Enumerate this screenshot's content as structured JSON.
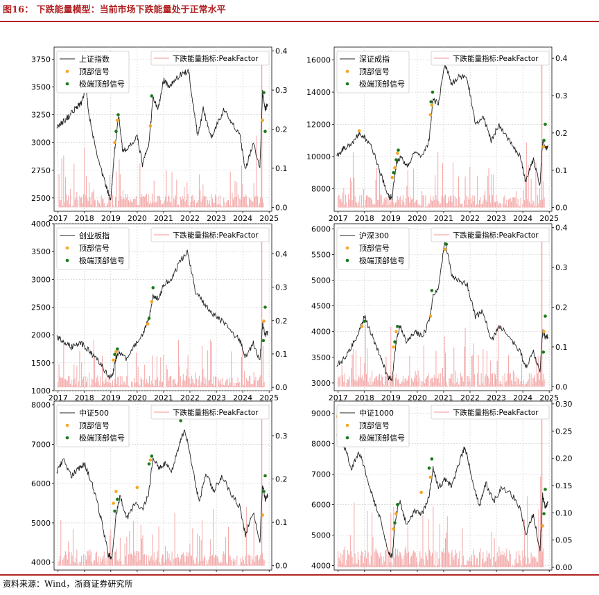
{
  "header": {
    "title": "图16： 下跌能量模型：当前市场下跌能量处于正常水平"
  },
  "footer": {
    "source": "资料来源：Wind，浙商证券研究所"
  },
  "colors": {
    "price": "#222222",
    "energy": "#f4a6a6",
    "top_signal": "#f5a623",
    "extreme_signal": "#1a7a1a",
    "accent": "#b22222"
  },
  "chart_data": [
    {
      "type": "line",
      "legend_left": [
        "上证指数",
        "顶部信号",
        "极端顶部信号"
      ],
      "legend_right": "下跌能量指标:PeakFactor",
      "x_ticks": [
        "2017",
        "2018",
        "2019",
        "2020",
        "2021",
        "2022",
        "2023",
        "2024",
        "2025"
      ],
      "y_left_ticks": [
        "2500",
        "2750",
        "3000",
        "3250",
        "3500",
        "3750"
      ],
      "y_left_range": [
        2380,
        3860
      ],
      "y_right_ticks": [
        "0.0",
        "0.1",
        "0.2",
        "0.3",
        "0.4"
      ],
      "y_right_range": [
        -0.01,
        0.41
      ],
      "series": [
        {
          "name": "上证指数",
          "x": [
            2016.95,
            2017.1,
            2017.3,
            2017.5,
            2017.7,
            2017.9,
            2018.05,
            2018.2,
            2018.5,
            2018.8,
            2019.0,
            2019.15,
            2019.3,
            2019.45,
            2019.7,
            2020.0,
            2020.2,
            2020.45,
            2020.6,
            2020.8,
            2021.0,
            2021.2,
            2021.5,
            2021.7,
            2021.95,
            2022.15,
            2022.3,
            2022.5,
            2022.8,
            2023.0,
            2023.3,
            2023.6,
            2023.9,
            2024.1,
            2024.4,
            2024.65,
            2024.75,
            2024.85,
            2024.95
          ],
          "values": [
            3130,
            3170,
            3210,
            3260,
            3320,
            3360,
            3480,
            3220,
            2850,
            2620,
            2480,
            2950,
            3250,
            2920,
            2960,
            3050,
            2800,
            3000,
            3400,
            3300,
            3570,
            3500,
            3580,
            3620,
            3640,
            3300,
            3050,
            3300,
            3050,
            3150,
            3300,
            3180,
            3050,
            2750,
            3000,
            2760,
            3450,
            3300,
            3350
          ]
        },
        {
          "name": "顶部信号",
          "x": [
            2019.15,
            2019.25,
            2020.5,
            2024.75
          ],
          "values": [
            3000,
            3200,
            3150,
            3200
          ]
        },
        {
          "name": "极端顶部信号",
          "x": [
            2019.2,
            2019.28,
            2020.55,
            2024.8,
            2024.85
          ],
          "values": [
            3100,
            3250,
            3420,
            3450,
            3100
          ]
        }
      ]
    },
    {
      "type": "line",
      "legend_left": [
        "深证成指",
        "顶部信号",
        "极端顶部信号"
      ],
      "legend_right": "下跌能量指标:PeakFactor",
      "x_ticks": [
        "2017",
        "2018",
        "2019",
        "2020",
        "2021",
        "2022",
        "2023",
        "2024",
        "2025"
      ],
      "y_left_ticks": [
        "8000",
        "10000",
        "12000",
        "14000",
        "16000"
      ],
      "y_left_range": [
        6600,
        16800
      ],
      "y_right_ticks": [
        "0.0",
        "0.1",
        "0.2",
        "0.3",
        "0.4"
      ],
      "y_right_range": [
        -0.01,
        0.43
      ],
      "series": [
        {
          "name": "深证成指",
          "x": [
            2016.95,
            2017.2,
            2017.5,
            2017.8,
            2018.0,
            2018.3,
            2018.6,
            2018.9,
            2019.05,
            2019.2,
            2019.35,
            2019.6,
            2019.9,
            2020.2,
            2020.45,
            2020.6,
            2020.8,
            2021.05,
            2021.3,
            2021.6,
            2021.9,
            2022.2,
            2022.5,
            2022.8,
            2023.1,
            2023.5,
            2023.9,
            2024.1,
            2024.4,
            2024.65,
            2024.75,
            2024.85,
            2024.95
          ],
          "values": [
            10000,
            10500,
            10800,
            11400,
            11200,
            10500,
            9000,
            7500,
            7500,
            9500,
            10000,
            9400,
            10200,
            10000,
            11000,
            13500,
            13300,
            15800,
            14500,
            15000,
            14800,
            12000,
            12500,
            11000,
            12000,
            11000,
            10000,
            8500,
            9800,
            8200,
            11000,
            10500,
            10600
          ]
        },
        {
          "name": "顶部信号",
          "x": [
            2017.8,
            2019.05,
            2019.15,
            2019.25,
            2020.5,
            2020.55,
            2024.78
          ],
          "values": [
            11600,
            8700,
            9300,
            10200,
            12600,
            13200,
            10600
          ]
        },
        {
          "name": "极端顶部信号",
          "x": [
            2019.1,
            2019.2,
            2019.28,
            2020.52,
            2020.58,
            2024.8,
            2024.85
          ],
          "values": [
            9000,
            9800,
            10400,
            13400,
            14000,
            11000,
            12000
          ]
        }
      ]
    },
    {
      "type": "line",
      "legend_left": [
        "创业板指",
        "顶部信号",
        "极端顶部信号"
      ],
      "legend_right": "下跌能量指标:PeakFactor",
      "x_ticks": [
        "2017",
        "2018",
        "2019",
        "2020",
        "2021",
        "2022",
        "2023",
        "2024",
        "2025"
      ],
      "y_left_ticks": [
        "1000",
        "1500",
        "2000",
        "2500",
        "3000",
        "3500",
        "4000"
      ],
      "y_left_range": [
        1000,
        4000
      ],
      "y_right_ticks": [
        "0.0",
        "0.1",
        "0.2",
        "0.3",
        "0.4"
      ],
      "y_right_range": [
        -0.01,
        0.49
      ],
      "series": [
        {
          "name": "创业板指",
          "x": [
            2016.95,
            2017.2,
            2017.5,
            2017.8,
            2018.0,
            2018.3,
            2018.6,
            2018.9,
            2019.05,
            2019.2,
            2019.35,
            2019.6,
            2019.9,
            2020.2,
            2020.45,
            2020.6,
            2020.8,
            2021.0,
            2021.3,
            2021.6,
            2021.9,
            2022.2,
            2022.5,
            2022.8,
            2023.1,
            2023.5,
            2023.9,
            2024.1,
            2024.4,
            2024.65,
            2024.75,
            2024.85,
            2024.95
          ],
          "values": [
            1950,
            1900,
            1780,
            1870,
            1800,
            1650,
            1500,
            1250,
            1250,
            1600,
            1700,
            1550,
            1800,
            2000,
            2300,
            2700,
            2650,
            2900,
            3000,
            3300,
            3500,
            2800,
            2600,
            2400,
            2300,
            2100,
            1900,
            1600,
            1850,
            1550,
            2200,
            2000,
            2050
          ]
        },
        {
          "name": "顶部信号",
          "x": [
            2019.1,
            2019.2,
            2020.4,
            2020.55,
            2024.8
          ],
          "values": [
            1550,
            1700,
            2200,
            2600,
            2250
          ]
        },
        {
          "name": "极端顶部信号",
          "x": [
            2019.15,
            2019.25,
            2020.45,
            2020.6,
            2024.78,
            2024.85
          ],
          "values": [
            1650,
            1750,
            2300,
            2850,
            1900,
            2500
          ]
        }
      ]
    },
    {
      "type": "line",
      "legend_left": [
        "沪深300",
        "顶部信号",
        "极端顶部信号"
      ],
      "legend_right": "下跌能量指标:PeakFactor",
      "x_ticks": [
        "2017",
        "2018",
        "2019",
        "2020",
        "2021",
        "2022",
        "2023",
        "2024",
        "2025"
      ],
      "y_left_ticks": [
        "3000",
        "3500",
        "4000",
        "4500",
        "5000",
        "5500",
        "6000"
      ],
      "y_left_range": [
        2850,
        6100
      ],
      "y_right_ticks": [
        "0.0",
        "0.1",
        "0.2",
        "0.3",
        "0.4"
      ],
      "y_right_range": [
        -0.01,
        0.41
      ],
      "series": [
        {
          "name": "沪深300",
          "x": [
            2016.95,
            2017.2,
            2017.5,
            2017.8,
            2018.0,
            2018.3,
            2018.6,
            2018.9,
            2019.05,
            2019.2,
            2019.35,
            2019.6,
            2019.9,
            2020.2,
            2020.45,
            2020.6,
            2020.8,
            2021.05,
            2021.3,
            2021.6,
            2021.9,
            2022.2,
            2022.5,
            2022.8,
            2023.1,
            2023.5,
            2023.9,
            2024.1,
            2024.4,
            2024.65,
            2024.75,
            2024.85,
            2024.95
          ],
          "values": [
            3350,
            3450,
            3700,
            4000,
            4300,
            3900,
            3500,
            3100,
            3100,
            3800,
            4100,
            3800,
            4000,
            3900,
            4200,
            4700,
            4800,
            5800,
            5100,
            5000,
            4900,
            4300,
            4400,
            3800,
            4100,
            3900,
            3600,
            3300,
            3600,
            3200,
            4000,
            3900,
            3900
          ]
        },
        {
          "name": "顶部信号",
          "x": [
            2017.9,
            2019.1,
            2019.2,
            2020.5,
            2021.05,
            2024.8
          ],
          "values": [
            4100,
            3700,
            4000,
            4300,
            5600,
            4000
          ]
        },
        {
          "name": "极端顶部信号",
          "x": [
            2018.0,
            2019.15,
            2019.25,
            2020.55,
            2021.1,
            2024.78,
            2024.85
          ],
          "values": [
            4200,
            3800,
            4100,
            4800,
            5700,
            3600,
            4300
          ]
        }
      ]
    },
    {
      "type": "line",
      "legend_left": [
        "中证500",
        "顶部信号",
        "极端顶部信号"
      ],
      "legend_right": "下跌能量指标:PeakFactor",
      "x_ticks": [
        "2017",
        "2018",
        "2019",
        "2020",
        "2021",
        "2022",
        "2023",
        "2024",
        "2025"
      ],
      "y_left_ticks": [
        "4000",
        "5000",
        "6000",
        "7000",
        "8000"
      ],
      "y_left_range": [
        3800,
        8100
      ],
      "y_right_ticks": [
        "0.0",
        "0.1",
        "0.2",
        "0.3"
      ],
      "y_right_range": [
        -0.01,
        0.38
      ],
      "series": [
        {
          "name": "中证500",
          "x": [
            2016.95,
            2017.2,
            2017.5,
            2017.8,
            2018.0,
            2018.3,
            2018.6,
            2018.9,
            2019.05,
            2019.2,
            2019.35,
            2019.6,
            2019.9,
            2020.2,
            2020.45,
            2020.6,
            2020.8,
            2021.05,
            2021.3,
            2021.6,
            2021.8,
            2022.1,
            2022.35,
            2022.6,
            2022.9,
            2023.2,
            2023.6,
            2023.9,
            2024.1,
            2024.4,
            2024.65,
            2024.75,
            2024.85,
            2024.95
          ],
          "values": [
            6300,
            6600,
            6200,
            6400,
            6500,
            6000,
            5200,
            4200,
            4100,
            5200,
            5700,
            5100,
            5500,
            5300,
            5800,
            6700,
            6400,
            6500,
            6300,
            7000,
            7400,
            6400,
            5500,
            6300,
            5800,
            6200,
            5700,
            5400,
            4700,
            5300,
            4500,
            6000,
            5600,
            5700
          ]
        },
        {
          "name": "顶部信号",
          "x": [
            2019.1,
            2019.2,
            2020.0,
            2020.5,
            2024.75
          ],
          "values": [
            5500,
            5800,
            5900,
            6600,
            5200
          ]
        },
        {
          "name": "极端顶部信号",
          "x": [
            2019.15,
            2019.25,
            2020.45,
            2020.55,
            2021.65,
            2024.8,
            2024.85
          ],
          "values": [
            5300,
            5600,
            6500,
            6700,
            7600,
            5800,
            6200
          ]
        }
      ]
    },
    {
      "type": "line",
      "legend_left": [
        "中证1000",
        "顶部信号",
        "极端顶部信号"
      ],
      "legend_right": "下跌能量指标:PeakFactor",
      "x_ticks": [
        "2017",
        "2018",
        "2019",
        "2020",
        "2021",
        "2022",
        "2023",
        "2024",
        "2025"
      ],
      "y_left_ticks": [
        "4000",
        "5000",
        "6000",
        "7000",
        "8000",
        "9000"
      ],
      "y_left_range": [
        3850,
        9400
      ],
      "y_right_ticks": [
        "0.00",
        "0.05",
        "0.10",
        "0.15",
        "0.20",
        "0.25",
        "0.30"
      ],
      "y_right_range": [
        -0.005,
        0.305
      ],
      "series": [
        {
          "name": "中证1000",
          "x": [
            2016.95,
            2017.2,
            2017.5,
            2017.8,
            2018.0,
            2018.3,
            2018.6,
            2018.9,
            2019.05,
            2019.2,
            2019.35,
            2019.6,
            2019.9,
            2020.2,
            2020.45,
            2020.6,
            2020.8,
            2021.05,
            2021.3,
            2021.6,
            2021.8,
            2022.1,
            2022.35,
            2022.6,
            2022.9,
            2023.2,
            2023.6,
            2023.9,
            2024.1,
            2024.4,
            2024.65,
            2024.75,
            2024.85,
            2024.95
          ],
          "values": [
            8300,
            8000,
            7200,
            7700,
            7200,
            6300,
            5500,
            4400,
            4300,
            5700,
            6100,
            5300,
            5800,
            5700,
            6300,
            7200,
            6600,
            6800,
            6600,
            7400,
            7900,
            6800,
            5900,
            6700,
            6100,
            6600,
            6300,
            5900,
            5000,
            5700,
            4500,
            6300,
            5900,
            6100
          ]
        },
        {
          "name": "顶部信号",
          "x": [
            2016.98,
            2019.1,
            2019.2,
            2020.15,
            2020.5,
            2024.75
          ],
          "values": [
            8900,
            5200,
            5700,
            6400,
            6900,
            5300
          ]
        },
        {
          "name": "极端顶部信号",
          "x": [
            2017.02,
            2019.15,
            2019.25,
            2020.45,
            2020.55,
            2024.8,
            2024.85
          ],
          "values": [
            8300,
            5400,
            6000,
            7200,
            7500,
            5700,
            6500
          ]
        }
      ]
    }
  ]
}
